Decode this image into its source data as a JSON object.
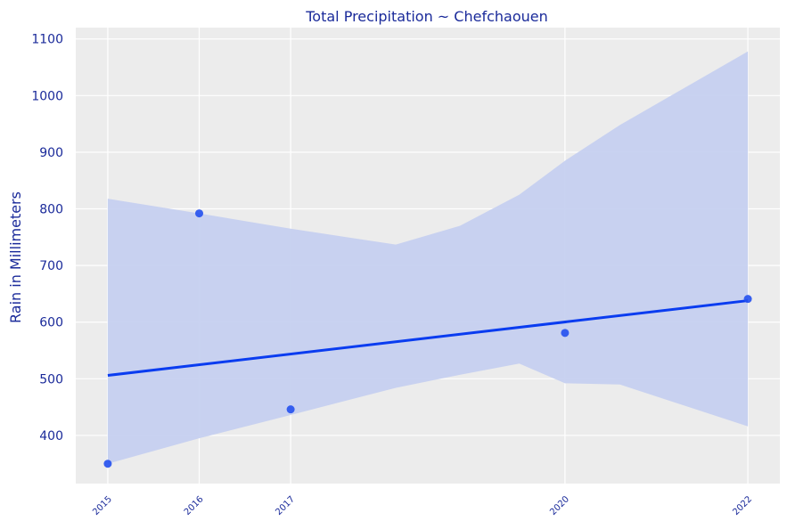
{
  "chart_data": {
    "type": "scatter",
    "title": "Total Precipitation ~ Chefchaouen",
    "xlabel": "",
    "ylabel": "Rain in Millimeters",
    "x": [
      2015,
      2016,
      2017,
      2020,
      2022
    ],
    "x_tick_labels": [
      "2015",
      "2016",
      "2017",
      "2020",
      "2022"
    ],
    "y": [
      350,
      792,
      446,
      581,
      641
    ],
    "y_ticks": [
      400,
      500,
      600,
      700,
      800,
      900,
      1000,
      1100
    ],
    "y_tick_labels": [
      "400",
      "500",
      "600",
      "700",
      "800",
      "900",
      "1000",
      "1100"
    ],
    "xlim": [
      2014.65,
      2022.35
    ],
    "ylim": [
      315,
      1120
    ],
    "regression": {
      "start": [
        2015,
        506
      ],
      "end": [
        2022,
        638
      ]
    },
    "confidence_band": {
      "x": [
        2015,
        2016,
        2017,
        2018.15,
        2018.85,
        2019.5,
        2020,
        2020.6,
        2022
      ],
      "upper": [
        818,
        792,
        765,
        737,
        770,
        825,
        885,
        948,
        1078
      ],
      "lower": [
        350,
        395,
        436,
        484,
        507,
        527,
        492,
        490,
        416
      ]
    },
    "grid": true,
    "legend": "none",
    "colors": {
      "background": "#ececec",
      "grid": "#ffffff",
      "point": "#2350ee",
      "line": "#0a3cf0",
      "band": "#c6d0f0",
      "text": "#1a2a9a"
    }
  }
}
